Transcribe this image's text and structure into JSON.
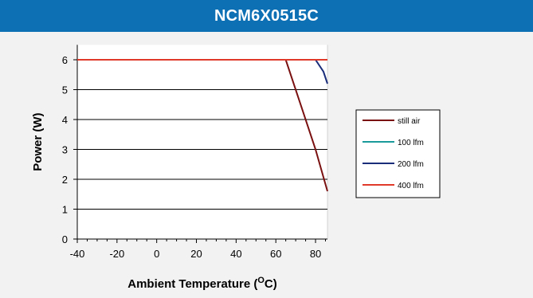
{
  "chart_data": {
    "type": "line",
    "title": "NCM6X0515C",
    "xlabel_main": "Ambient Temperature (",
    "xlabel_sup": "O",
    "xlabel_end": "C)",
    "ylabel": "Power (W)",
    "xlim": [
      -40,
      86
    ],
    "ylim": [
      0,
      6.5
    ],
    "xticks": [
      -40,
      -20,
      0,
      20,
      40,
      60,
      80
    ],
    "yticks": [
      0,
      1,
      2,
      3,
      4,
      5,
      6
    ],
    "grid": "horizontal",
    "legend_position": "right",
    "colors": {
      "header_bg": "#0d6fb4",
      "panel_bg": "#f2f2f2"
    },
    "series": [
      {
        "name": "still air",
        "color": "#7a1010",
        "points": [
          [
            -40,
            6
          ],
          [
            65,
            6
          ],
          [
            80,
            3
          ],
          [
            86,
            1.6
          ]
        ]
      },
      {
        "name": "100 lfm",
        "color": "#1a9a9a",
        "points": [
          [
            -40,
            6
          ],
          [
            86,
            6
          ]
        ]
      },
      {
        "name": "200 lfm",
        "color": "#1a2d7a",
        "points": [
          [
            -40,
            6
          ],
          [
            80,
            6
          ],
          [
            84,
            5.6
          ],
          [
            86,
            5.2
          ]
        ]
      },
      {
        "name": "400 lfm",
        "color": "#e03a2a",
        "points": [
          [
            -40,
            6
          ],
          [
            86,
            6
          ]
        ]
      }
    ]
  }
}
